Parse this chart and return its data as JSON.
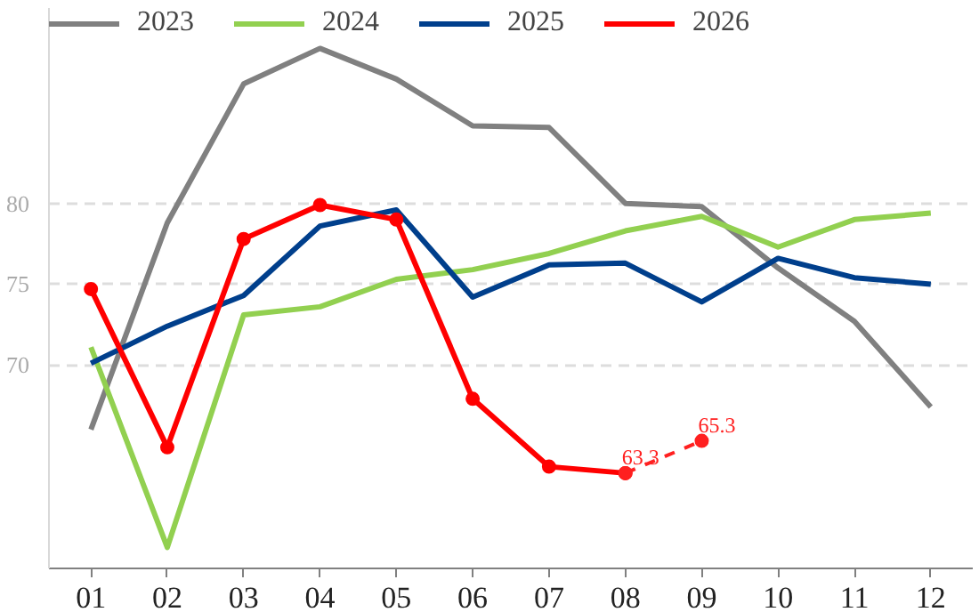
{
  "chart_data": {
    "type": "line",
    "categories": [
      "01",
      "02",
      "03",
      "04",
      "05",
      "06",
      "07",
      "08",
      "09",
      "10",
      "11",
      "12"
    ],
    "ylim": [
      57.4,
      92.1
    ],
    "yticks": [
      70,
      75,
      80
    ],
    "grid": "y",
    "legend": "top",
    "series": [
      {
        "name": "2023",
        "color": "#808080",
        "values": [
          66.0,
          78.8,
          87.4,
          89.6,
          87.7,
          84.8,
          84.7,
          80.0,
          79.8,
          76.0,
          72.7,
          67.4
        ]
      },
      {
        "name": "2024",
        "color": "#92d050",
        "values": [
          71.1,
          58.7,
          73.1,
          73.6,
          75.3,
          75.9,
          76.9,
          78.3,
          79.2,
          77.3,
          79.0,
          79.4
        ]
      },
      {
        "name": "2025",
        "color": "#003f8c",
        "values": [
          70.1,
          72.4,
          74.3,
          78.6,
          79.6,
          74.2,
          76.2,
          76.3,
          73.9,
          76.6,
          75.4,
          75.0
        ]
      },
      {
        "name": "2026",
        "color": "#ff0000",
        "marker": "circle",
        "values": [
          74.7,
          64.9,
          77.8,
          79.9,
          79.0,
          67.9,
          63.7,
          63.3,
          null,
          null,
          null,
          null
        ]
      },
      {
        "color": "#ff2020",
        "marker": "circle",
        "line_style": "dashed",
        "values": [
          null,
          null,
          null,
          null,
          null,
          null,
          null,
          63.3,
          65.3,
          null,
          null,
          null
        ],
        "value_labels": [
          null,
          null,
          null,
          null,
          null,
          null,
          null,
          "63.3",
          "65.3",
          null,
          null,
          null
        ]
      }
    ]
  }
}
